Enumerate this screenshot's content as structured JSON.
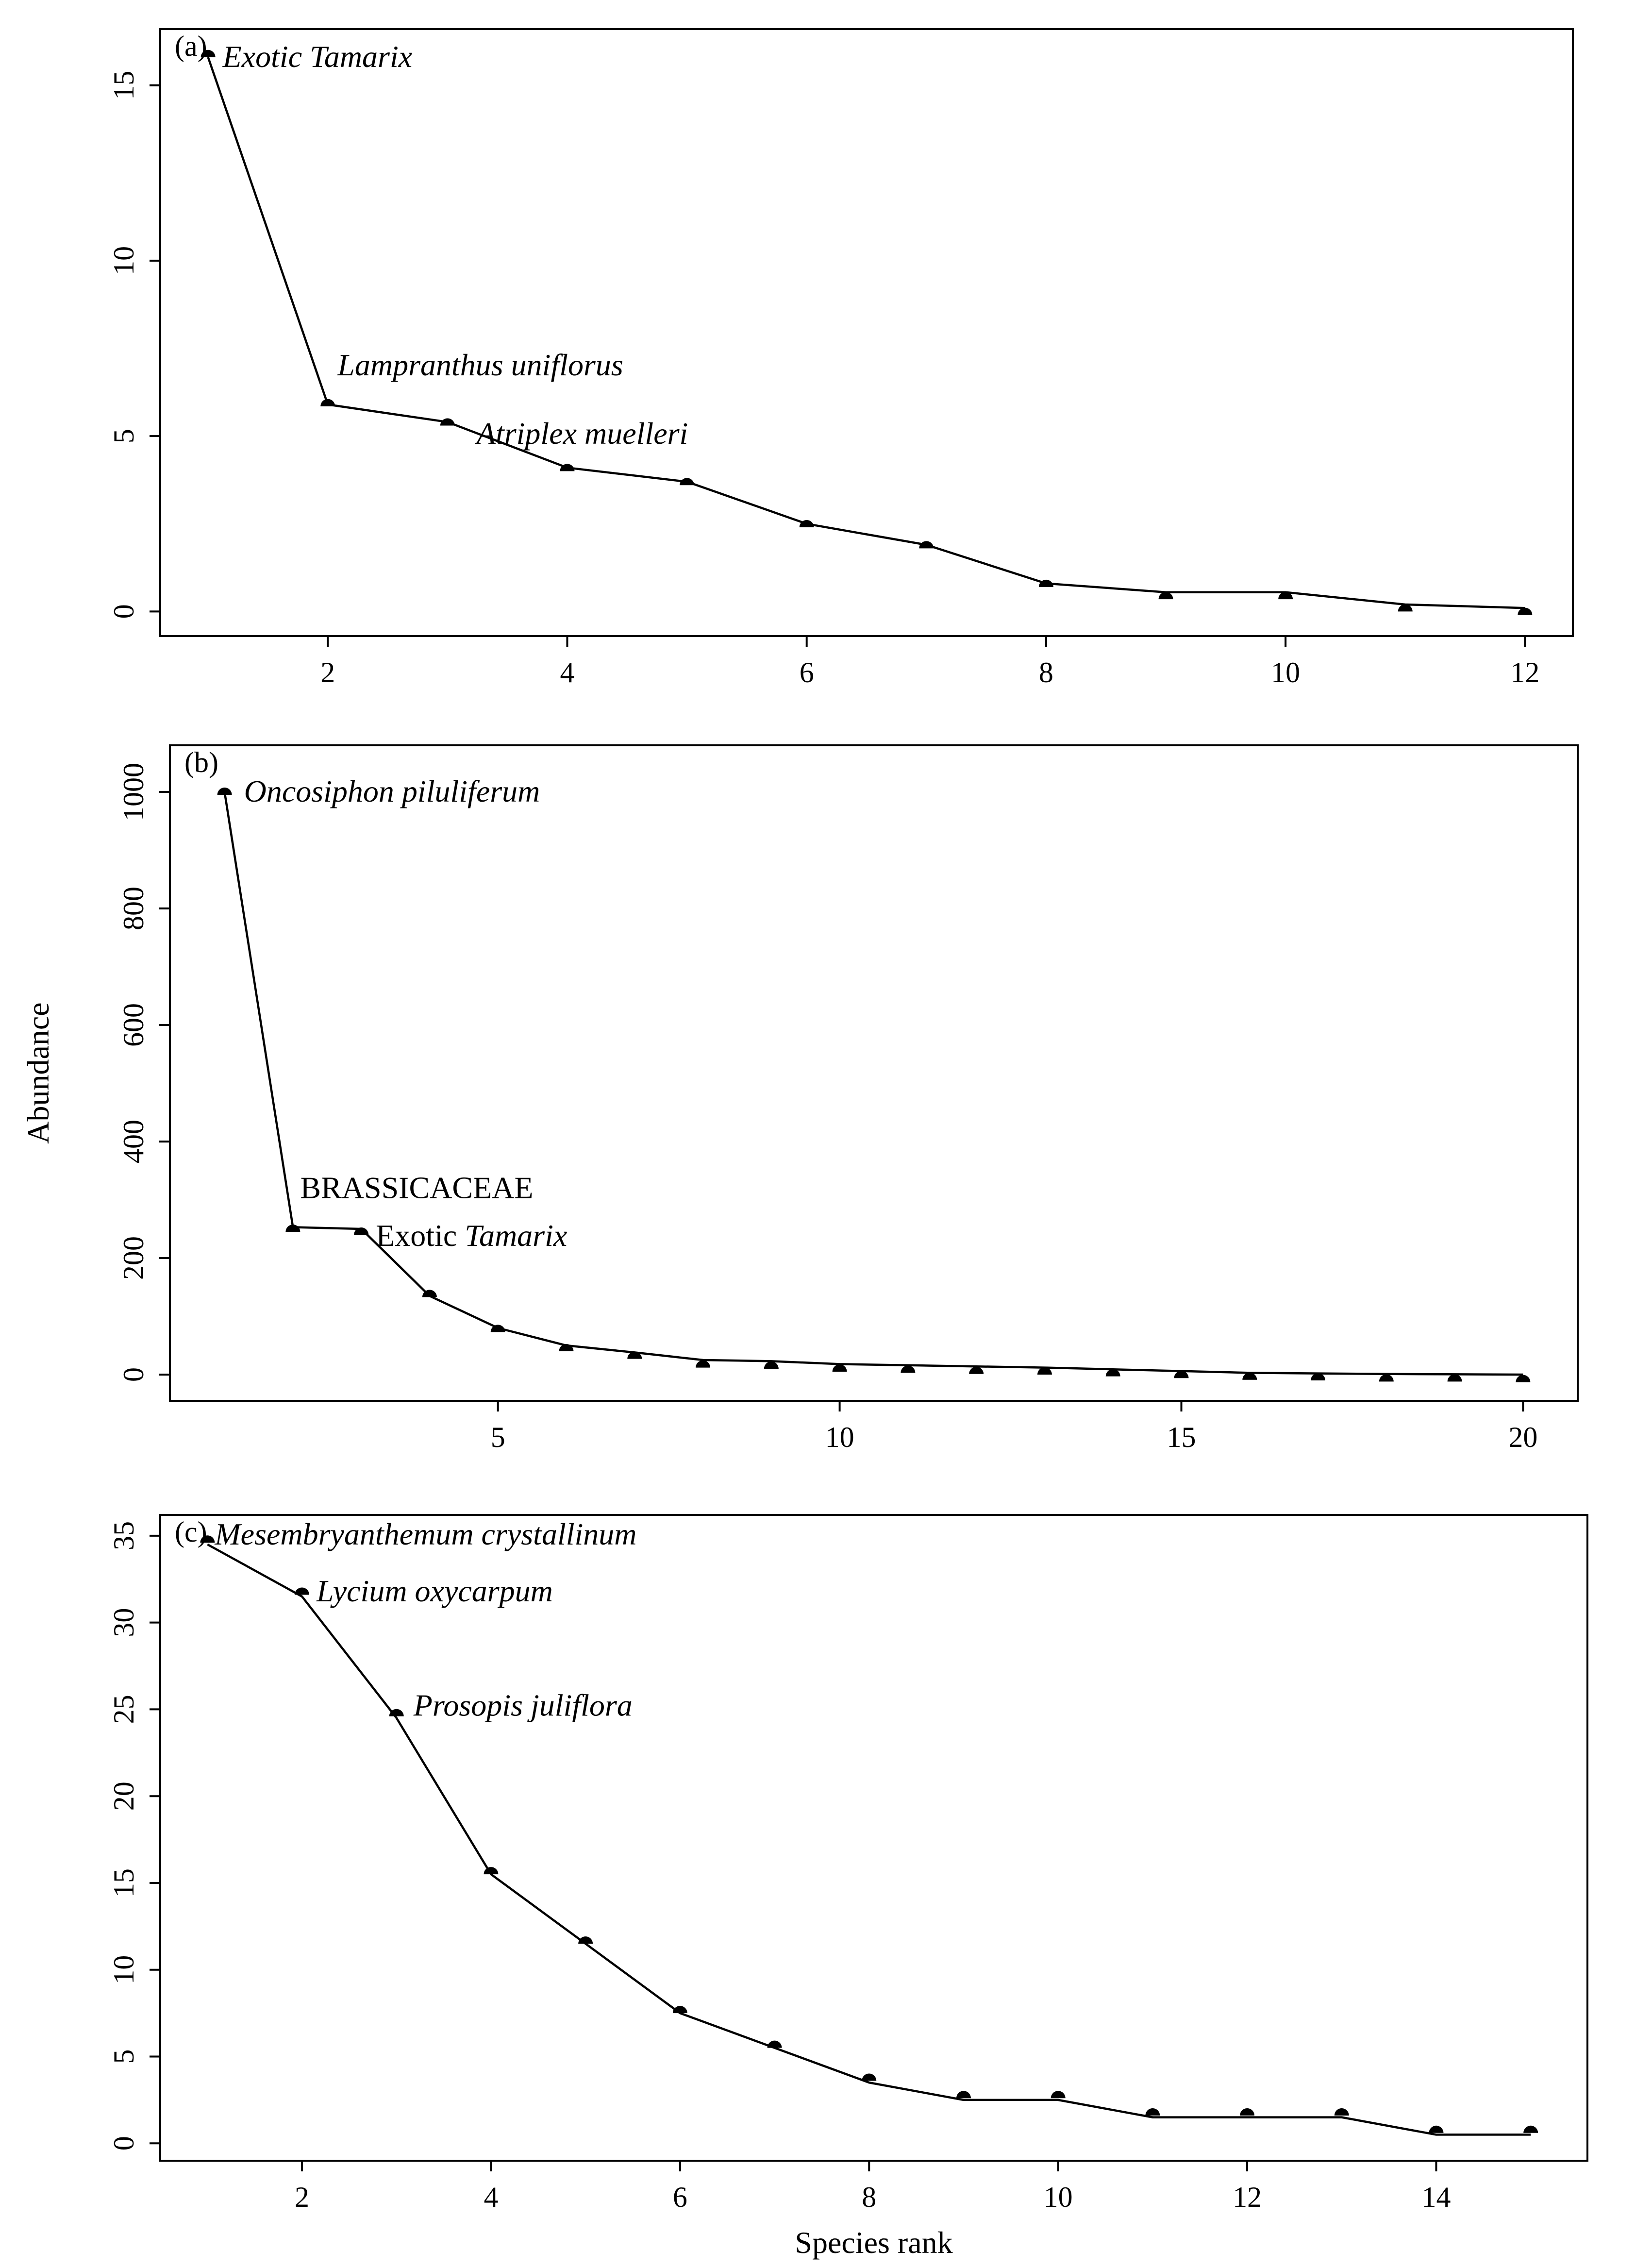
{
  "chart_data": [
    {
      "type": "line",
      "panel": "(a)",
      "x": [
        1,
        2,
        3,
        4,
        5,
        6,
        7,
        8,
        9,
        10,
        11,
        12
      ],
      "values": [
        15.8,
        5.9,
        5.4,
        4.1,
        3.7,
        2.5,
        1.9,
        0.8,
        0.55,
        0.55,
        0.2,
        0.1
      ],
      "points": [
        15.8,
        5.85,
        5.3,
        4.0,
        3.6,
        2.4,
        1.8,
        0.7,
        0.35,
        0.35,
        0.0,
        -0.1
      ],
      "xlim": [
        0.6,
        12.4
      ],
      "ylim": [
        -0.7,
        16.6
      ],
      "xticks": [
        2,
        4,
        6,
        8,
        10,
        12
      ],
      "yticks": [
        0,
        5,
        10,
        15
      ],
      "xlabel": "",
      "ylabel": "",
      "annotations": [
        {
          "rank": 1,
          "parts": [
            {
              "text": "Exotic Tamarix",
              "italic": true
            }
          ]
        },
        {
          "rank": 2,
          "parts": [
            {
              "text": "Lampranthus uniflorus",
              "italic": true
            }
          ]
        },
        {
          "rank": 3,
          "parts": [
            {
              "text": "Atriplex muelleri",
              "italic": true
            }
          ]
        }
      ]
    },
    {
      "type": "line",
      "panel": "(b)",
      "x": [
        1,
        2,
        3,
        4,
        5,
        6,
        7,
        8,
        9,
        10,
        11,
        12,
        13,
        14,
        15,
        16,
        17,
        18,
        19,
        20
      ],
      "values": [
        1000,
        253,
        250,
        135,
        80,
        50,
        38,
        25,
        23,
        18,
        16,
        14,
        12,
        9,
        6,
        3,
        2,
        1,
        0.5,
        0
      ],
      "points": [
        995,
        245,
        240,
        133,
        73,
        40,
        27,
        12,
        10,
        5,
        3,
        1,
        0,
        -3,
        -6,
        -9,
        -10,
        -12,
        -12,
        -13
      ],
      "xlim": [
        0.2,
        20.8
      ],
      "ylim": [
        -45,
        1080
      ],
      "xticks": [
        5,
        10,
        15,
        20
      ],
      "yticks": [
        0,
        200,
        400,
        600,
        800,
        1000
      ],
      "xlabel": "",
      "ylabel": "Abundance",
      "annotations": [
        {
          "rank": 1,
          "parts": [
            {
              "text": "Oncosiphon piluliferum",
              "italic": true
            }
          ]
        },
        {
          "rank": 2,
          "parts": [
            {
              "text": "BRASSICACEAE",
              "italic": false
            }
          ]
        },
        {
          "rank": 3,
          "parts": [
            {
              "text": "Exotic ",
              "italic": false
            },
            {
              "text": "Tamarix",
              "italic": true
            }
          ]
        }
      ]
    },
    {
      "type": "line",
      "panel": "(c)",
      "x": [
        1,
        2,
        3,
        4,
        5,
        6,
        7,
        8,
        9,
        10,
        11,
        12,
        13,
        14,
        15
      ],
      "values": [
        34.5,
        31.5,
        24.5,
        15.5,
        11.5,
        7.5,
        5.5,
        3.5,
        2.5,
        2.5,
        1.5,
        1.5,
        1.5,
        0.5,
        0.5
      ],
      "points": [
        34.6,
        31.6,
        24.6,
        15.5,
        11.5,
        7.5,
        5.5,
        3.6,
        2.6,
        2.6,
        1.6,
        1.6,
        1.6,
        0.6,
        0.6
      ],
      "xlim": [
        0.5,
        15.6
      ],
      "ylim": [
        -1.0,
        36.2
      ],
      "xticks": [
        2,
        4,
        6,
        8,
        10,
        12,
        14
      ],
      "yticks": [
        0,
        5,
        10,
        15,
        20,
        25,
        30,
        35
      ],
      "xlabel": "Species rank",
      "ylabel": "",
      "annotations": [
        {
          "rank": 1,
          "parts": [
            {
              "text": "Mesembryanthemum crystallinum",
              "italic": true
            }
          ]
        },
        {
          "rank": 2,
          "parts": [
            {
              "text": "Lycium oxycarpum",
              "italic": true
            }
          ]
        },
        {
          "rank": 3,
          "parts": [
            {
              "text": "Prosopis juliflora",
              "italic": true
            }
          ]
        }
      ]
    }
  ]
}
